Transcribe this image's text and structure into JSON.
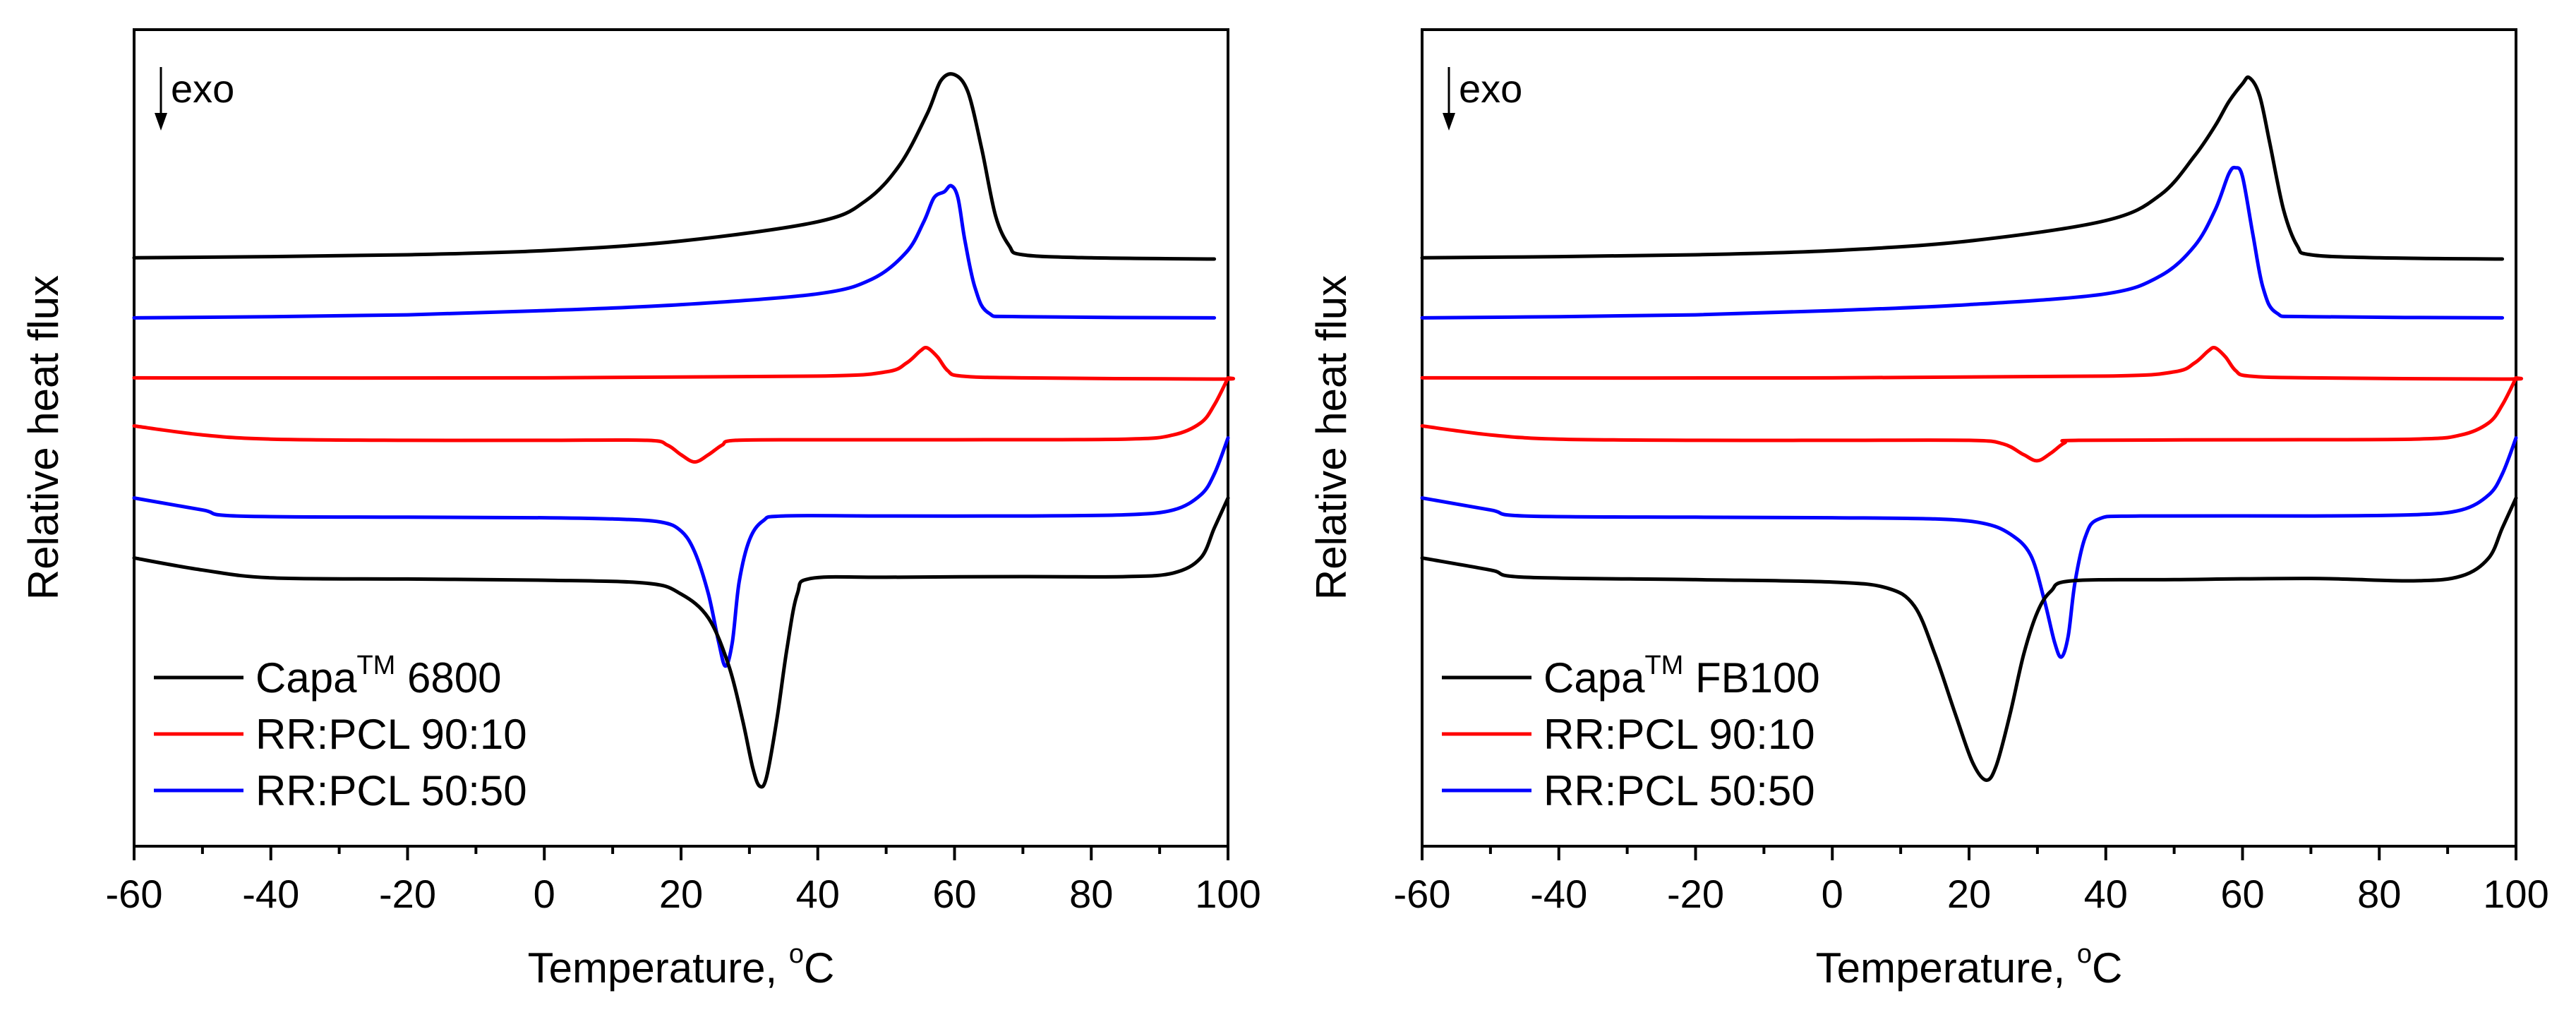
{
  "chart_data": [
    {
      "type": "line",
      "id": "left",
      "xlabel": "Temperature, ",
      "xlabel_unit_sup": "o",
      "xlabel_unit": "C",
      "ylabel": "Relative heat flux",
      "xlim": [
        -60,
        100
      ],
      "xticks": [
        "-60",
        "-40",
        "-20",
        "0",
        "20",
        "40",
        "60",
        "80",
        "100"
      ],
      "annotation": "exo",
      "legend": [
        {
          "base": "Capa",
          "sup": "TM",
          "rest": " 6800",
          "color": "#000000"
        },
        {
          "base": "RR:PCL 90:10",
          "sup": "",
          "rest": "",
          "color": "#ff0000"
        },
        {
          "base": "RR:PCL 50:50",
          "sup": "",
          "rest": "",
          "color": "#0000ff"
        }
      ],
      "series": [
        {
          "name": "Capa 6800 heating",
          "color": "#000000",
          "points": [
            [
              -60,
              9.0
            ],
            [
              -40,
              9.02
            ],
            [
              -20,
              9.05
            ],
            [
              0,
              9.12
            ],
            [
              20,
              9.28
            ],
            [
              40,
              9.6
            ],
            [
              47,
              9.95
            ],
            [
              52,
              10.55
            ],
            [
              56,
              11.4
            ],
            [
              58,
              11.95
            ],
            [
              60,
              12.05
            ],
            [
              62,
              11.75
            ],
            [
              64,
              10.8
            ],
            [
              66,
              9.7
            ],
            [
              68,
              9.2
            ],
            [
              70,
              9.05
            ],
            [
              80,
              9.0
            ],
            [
              98,
              8.98
            ]
          ]
        },
        {
          "name": "RR:PCL 50:50 heating",
          "color": "#0000ff",
          "points": [
            [
              -60,
              8.0
            ],
            [
              -40,
              8.02
            ],
            [
              -20,
              8.05
            ],
            [
              0,
              8.12
            ],
            [
              20,
              8.22
            ],
            [
              40,
              8.4
            ],
            [
              48,
              8.65
            ],
            [
              53,
              9.1
            ],
            [
              55.5,
              9.6
            ],
            [
              57,
              10.0
            ],
            [
              58.5,
              10.1
            ],
            [
              59.5,
              10.2
            ],
            [
              60.5,
              10.0
            ],
            [
              61.5,
              9.3
            ],
            [
              63,
              8.5
            ],
            [
              65,
              8.08
            ],
            [
              70,
              8.02
            ],
            [
              98,
              8.0
            ]
          ]
        },
        {
          "name": "RR:PCL 90:10 heating",
          "color": "#ff0000",
          "points": [
            [
              -60,
              7.0
            ],
            [
              0,
              7.0
            ],
            [
              40,
              7.03
            ],
            [
              50,
              7.1
            ],
            [
              53,
              7.25
            ],
            [
              55,
              7.45
            ],
            [
              56,
              7.5
            ],
            [
              57.5,
              7.35
            ],
            [
              59,
              7.12
            ],
            [
              61,
              7.03
            ],
            [
              70,
              7.0
            ],
            [
              98,
              6.98
            ],
            [
              100,
              7.0
            ]
          ]
        },
        {
          "name": "RR:PCL 90:10 cooling",
          "color": "#ff0000",
          "points": [
            [
              -60,
              6.2
            ],
            [
              -50,
              6.05
            ],
            [
              -40,
              5.98
            ],
            [
              -20,
              5.96
            ],
            [
              0,
              5.96
            ],
            [
              15,
              5.96
            ],
            [
              18,
              5.88
            ],
            [
              20,
              5.72
            ],
            [
              22,
              5.6
            ],
            [
              24,
              5.72
            ],
            [
              26,
              5.88
            ],
            [
              28,
              5.96
            ],
            [
              40,
              5.97
            ],
            [
              60,
              5.97
            ],
            [
              85,
              5.98
            ],
            [
              92,
              6.05
            ],
            [
              96,
              6.25
            ],
            [
              98,
              6.55
            ],
            [
              100,
              7.0
            ]
          ]
        },
        {
          "name": "RR:PCL 50:50 cooling",
          "color": "#0000ff",
          "points": [
            [
              -60,
              5.0
            ],
            [
              -50,
              4.8
            ],
            [
              -45,
              4.7
            ],
            [
              -20,
              4.68
            ],
            [
              0,
              4.67
            ],
            [
              10,
              4.65
            ],
            [
              17,
              4.6
            ],
            [
              20,
              4.45
            ],
            [
              22,
              4.1
            ],
            [
              24,
              3.4
            ],
            [
              25.5,
              2.6
            ],
            [
              26.5,
              2.2
            ],
            [
              27.5,
              2.6
            ],
            [
              28.5,
              3.6
            ],
            [
              30,
              4.3
            ],
            [
              32,
              4.62
            ],
            [
              35,
              4.7
            ],
            [
              50,
              4.7
            ],
            [
              70,
              4.7
            ],
            [
              85,
              4.72
            ],
            [
              92,
              4.8
            ],
            [
              96,
              5.05
            ],
            [
              98,
              5.4
            ],
            [
              100,
              6.0
            ]
          ]
        },
        {
          "name": "Capa 6800 cooling",
          "color": "#000000",
          "points": [
            [
              -60,
              4.0
            ],
            [
              -50,
              3.8
            ],
            [
              -40,
              3.67
            ],
            [
              -20,
              3.65
            ],
            [
              0,
              3.63
            ],
            [
              15,
              3.58
            ],
            [
              20,
              3.4
            ],
            [
              24,
              3.0
            ],
            [
              27,
              2.2
            ],
            [
              29,
              1.3
            ],
            [
              30.5,
              0.5
            ],
            [
              31.5,
              0.2
            ],
            [
              32.5,
              0.35
            ],
            [
              34,
              1.3
            ],
            [
              35.5,
              2.5
            ],
            [
              37,
              3.4
            ],
            [
              39,
              3.66
            ],
            [
              50,
              3.68
            ],
            [
              70,
              3.69
            ],
            [
              85,
              3.69
            ],
            [
              92,
              3.75
            ],
            [
              96,
              4.0
            ],
            [
              98,
              4.5
            ],
            [
              100,
              5.0
            ]
          ]
        }
      ]
    },
    {
      "type": "line",
      "id": "right",
      "xlabel": "Temperature, ",
      "xlabel_unit_sup": "o",
      "xlabel_unit": "C",
      "ylabel": "Relative heat flux",
      "xlim": [
        -60,
        100
      ],
      "xticks": [
        "-60",
        "-40",
        "-20",
        "0",
        "20",
        "40",
        "60",
        "80",
        "100"
      ],
      "annotation": "exo",
      "legend": [
        {
          "base": "Capa",
          "sup": "TM",
          "rest": " FB100",
          "color": "#000000"
        },
        {
          "base": "RR:PCL 90:10",
          "sup": "",
          "rest": "",
          "color": "#ff0000"
        },
        {
          "base": "RR:PCL 50:50",
          "sup": "",
          "rest": "",
          "color": "#0000ff"
        }
      ],
      "series": [
        {
          "name": "Capa FB100 heating",
          "color": "#000000",
          "points": [
            [
              -60,
              9.0
            ],
            [
              -40,
              9.02
            ],
            [
              -20,
              9.05
            ],
            [
              0,
              9.12
            ],
            [
              20,
              9.28
            ],
            [
              40,
              9.62
            ],
            [
              48,
              10.05
            ],
            [
              53,
              10.7
            ],
            [
              56,
              11.2
            ],
            [
              58,
              11.6
            ],
            [
              60,
              11.9
            ],
            [
              61,
              12.0
            ],
            [
              62.5,
              11.7
            ],
            [
              64,
              10.9
            ],
            [
              66,
              9.8
            ],
            [
              68,
              9.2
            ],
            [
              70,
              9.05
            ],
            [
              80,
              9.0
            ],
            [
              98,
              8.98
            ]
          ]
        },
        {
          "name": "RR:PCL 50:50 heating",
          "color": "#0000ff",
          "points": [
            [
              -60,
              8.0
            ],
            [
              -40,
              8.02
            ],
            [
              -20,
              8.05
            ],
            [
              0,
              8.12
            ],
            [
              20,
              8.22
            ],
            [
              40,
              8.4
            ],
            [
              48,
              8.7
            ],
            [
              53,
              9.2
            ],
            [
              56,
              9.8
            ],
            [
              58,
              10.4
            ],
            [
              59,
              10.5
            ],
            [
              60,
              10.35
            ],
            [
              61.5,
              9.4
            ],
            [
              63,
              8.5
            ],
            [
              65,
              8.08
            ],
            [
              70,
              8.02
            ],
            [
              98,
              8.0
            ]
          ]
        },
        {
          "name": "RR:PCL 90:10 heating",
          "color": "#ff0000",
          "points": [
            [
              -60,
              7.0
            ],
            [
              0,
              7.0
            ],
            [
              40,
              7.03
            ],
            [
              50,
              7.1
            ],
            [
              53,
              7.25
            ],
            [
              55,
              7.45
            ],
            [
              56,
              7.5
            ],
            [
              57.5,
              7.35
            ],
            [
              59,
              7.12
            ],
            [
              61,
              7.03
            ],
            [
              70,
              7.0
            ],
            [
              98,
              6.98
            ],
            [
              100,
              7.0
            ]
          ]
        },
        {
          "name": "RR:PCL 90:10 cooling",
          "color": "#ff0000",
          "points": [
            [
              -60,
              6.2
            ],
            [
              -50,
              6.05
            ],
            [
              -40,
              5.98
            ],
            [
              -20,
              5.96
            ],
            [
              0,
              5.96
            ],
            [
              20,
              5.96
            ],
            [
              25,
              5.9
            ],
            [
              28,
              5.72
            ],
            [
              30,
              5.62
            ],
            [
              32,
              5.75
            ],
            [
              34,
              5.92
            ],
            [
              36,
              5.96
            ],
            [
              60,
              5.97
            ],
            [
              85,
              5.98
            ],
            [
              92,
              6.05
            ],
            [
              96,
              6.25
            ],
            [
              98,
              6.55
            ],
            [
              100,
              7.0
            ]
          ]
        },
        {
          "name": "RR:PCL 50:50 cooling",
          "color": "#0000ff",
          "points": [
            [
              -60,
              5.0
            ],
            [
              -50,
              4.8
            ],
            [
              -45,
              4.7
            ],
            [
              -20,
              4.68
            ],
            [
              0,
              4.67
            ],
            [
              15,
              4.65
            ],
            [
              22,
              4.58
            ],
            [
              26,
              4.4
            ],
            [
              29,
              4.05
            ],
            [
              31,
              3.3
            ],
            [
              32.5,
              2.6
            ],
            [
              33.5,
              2.35
            ],
            [
              34.5,
              2.7
            ],
            [
              35.5,
              3.6
            ],
            [
              37,
              4.35
            ],
            [
              39,
              4.65
            ],
            [
              45,
              4.7
            ],
            [
              70,
              4.7
            ],
            [
              85,
              4.72
            ],
            [
              92,
              4.8
            ],
            [
              96,
              5.05
            ],
            [
              98,
              5.4
            ],
            [
              100,
              6.0
            ]
          ]
        },
        {
          "name": "Capa FB100 cooling",
          "color": "#000000",
          "points": [
            [
              -60,
              4.0
            ],
            [
              -50,
              3.8
            ],
            [
              -45,
              3.68
            ],
            [
              -20,
              3.64
            ],
            [
              0,
              3.6
            ],
            [
              8,
              3.5
            ],
            [
              12,
              3.2
            ],
            [
              15,
              2.4
            ],
            [
              18,
              1.4
            ],
            [
              20.5,
              0.6
            ],
            [
              22.5,
              0.3
            ],
            [
              24,
              0.55
            ],
            [
              26,
              1.4
            ],
            [
              28,
              2.4
            ],
            [
              30,
              3.1
            ],
            [
              32,
              3.45
            ],
            [
              35,
              3.62
            ],
            [
              50,
              3.64
            ],
            [
              70,
              3.66
            ],
            [
              85,
              3.62
            ],
            [
              92,
              3.7
            ],
            [
              96,
              4.0
            ],
            [
              98,
              4.5
            ],
            [
              100,
              5.0
            ]
          ]
        }
      ]
    }
  ]
}
